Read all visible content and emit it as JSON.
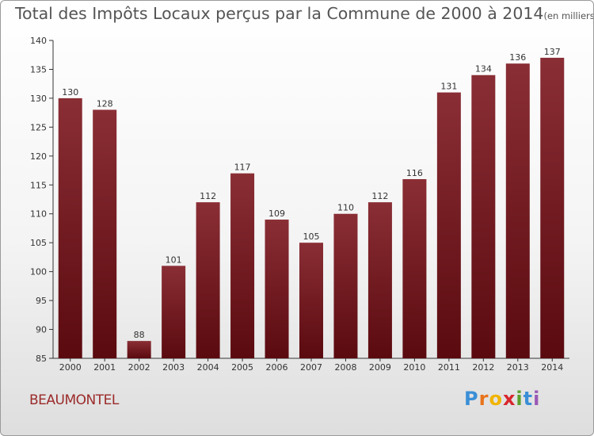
{
  "title": "Total des Impôts Locaux perçus par la Commune de 2000 à 2014",
  "unit_note": "(en milliers d'€)",
  "commune": "BEAUMONTEL",
  "logo": {
    "letters": [
      "P",
      "r",
      "o",
      "x",
      "i",
      "t",
      "i"
    ],
    "colors": [
      "#3a8fd6",
      "#e8731c",
      "#f0b400",
      "#d8262d",
      "#5aa02c",
      "#3a8fd6",
      "#9b59b6"
    ]
  },
  "colors": {
    "bar_top": "#8a2e35",
    "bar_bottom": "#5a0a0f",
    "axis": "#333333"
  },
  "chart_data": {
    "type": "bar",
    "title": "Total des Impôts Locaux perçus par la Commune de 2000 à 2014",
    "xlabel": "",
    "ylabel": "",
    "categories": [
      "2000",
      "2001",
      "2002",
      "2003",
      "2004",
      "2005",
      "2006",
      "2007",
      "2008",
      "2009",
      "2010",
      "2011",
      "2012",
      "2013",
      "2014"
    ],
    "values": [
      130,
      128,
      88,
      101,
      112,
      117,
      109,
      105,
      110,
      112,
      116,
      131,
      134,
      136,
      137
    ],
    "ylim": [
      85,
      140
    ],
    "yticks": [
      85,
      90,
      95,
      100,
      105,
      110,
      115,
      120,
      125,
      130,
      135,
      140
    ],
    "grid": false
  }
}
